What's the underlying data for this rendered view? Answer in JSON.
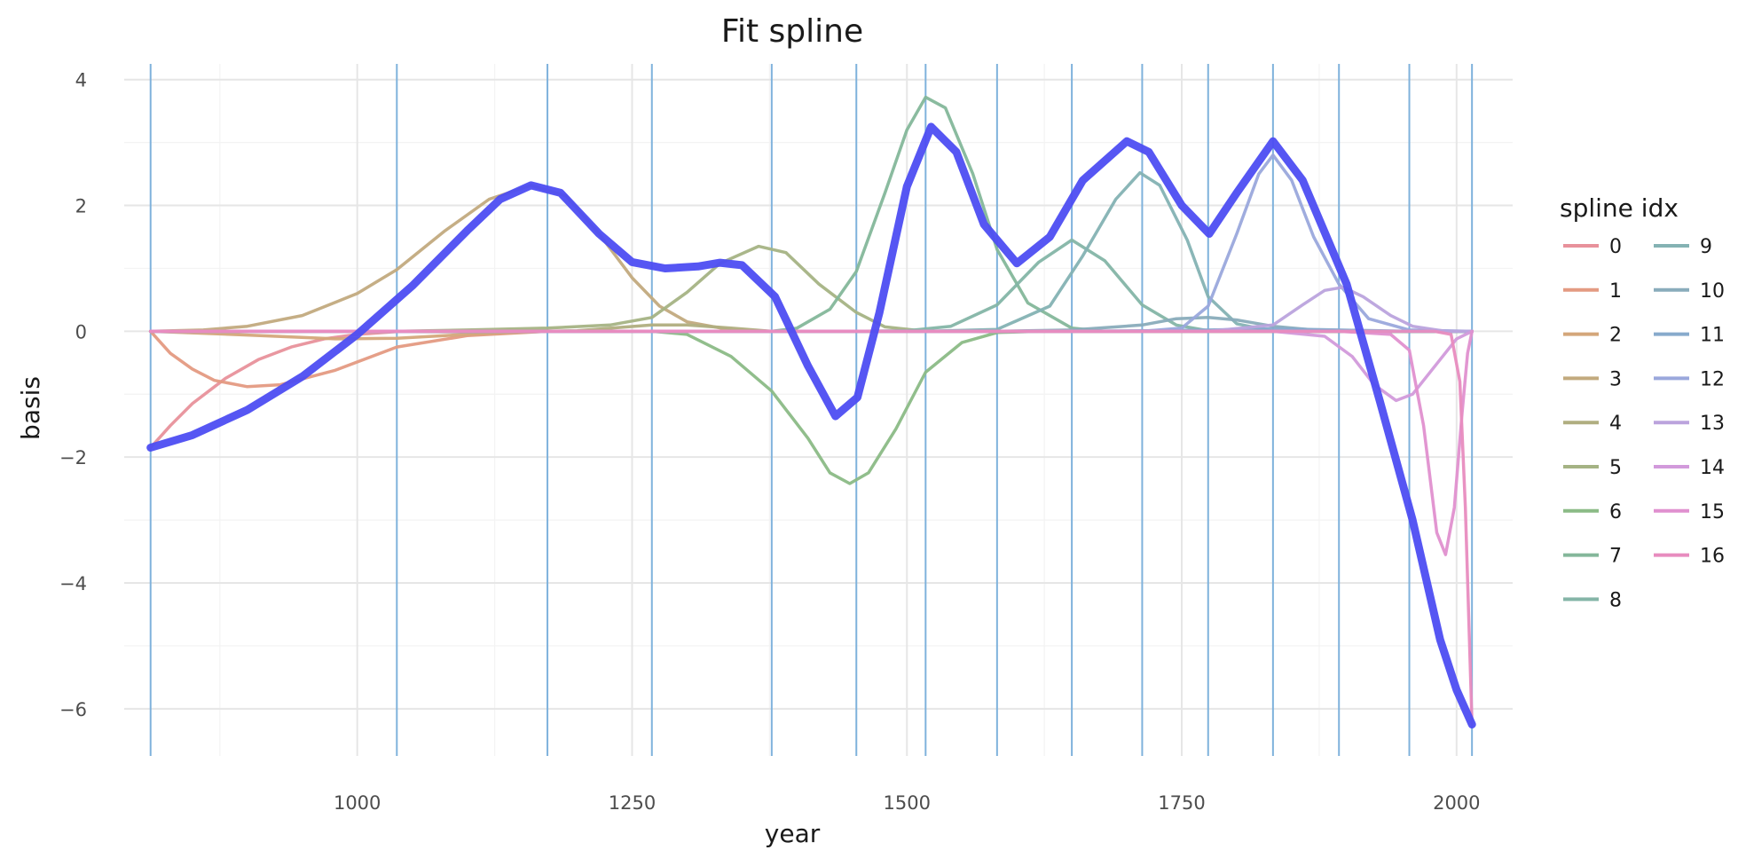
{
  "chart_data": {
    "type": "line",
    "title": "Fit spline",
    "xlabel": "year",
    "ylabel": "basis",
    "xlim": [
      788,
      2051
    ],
    "ylim": [
      -6.75,
      4.25
    ],
    "x_ticks": [
      1000,
      1250,
      1500,
      1750,
      2000
    ],
    "x_tick_labels": [
      "1000",
      "1250",
      "1500",
      "1750",
      "2000"
    ],
    "y_ticks": [
      4,
      2,
      0,
      -2,
      -4,
      -6
    ],
    "y_tick_labels": [
      "4",
      "2",
      "0",
      "−2",
      "−4",
      "−6"
    ],
    "grid": true,
    "legend": {
      "title": "spline idx",
      "placement": "right"
    },
    "knots": [
      812,
      1036,
      1173,
      1268,
      1377,
      1454,
      1517,
      1582,
      1650,
      1714,
      1774,
      1833,
      1893,
      1957,
      2014
    ],
    "knot_color": "#7fb2dc",
    "fit": {
      "color": "#4d4df2",
      "points": [
        [
          812,
          -1.85
        ],
        [
          850,
          -1.65
        ],
        [
          900,
          -1.25
        ],
        [
          950,
          -0.72
        ],
        [
          1000,
          -0.05
        ],
        [
          1050,
          0.72
        ],
        [
          1100,
          1.6
        ],
        [
          1130,
          2.1
        ],
        [
          1158,
          2.32
        ],
        [
          1185,
          2.2
        ],
        [
          1220,
          1.55
        ],
        [
          1250,
          1.1
        ],
        [
          1280,
          1.0
        ],
        [
          1310,
          1.03
        ],
        [
          1330,
          1.09
        ],
        [
          1350,
          1.05
        ],
        [
          1380,
          0.55
        ],
        [
          1410,
          -0.55
        ],
        [
          1435,
          -1.35
        ],
        [
          1455,
          -1.05
        ],
        [
          1475,
          0.3
        ],
        [
          1500,
          2.3
        ],
        [
          1522,
          3.25
        ],
        [
          1545,
          2.85
        ],
        [
          1570,
          1.7
        ],
        [
          1600,
          1.08
        ],
        [
          1630,
          1.5
        ],
        [
          1660,
          2.4
        ],
        [
          1700,
          3.02
        ],
        [
          1720,
          2.85
        ],
        [
          1750,
          2.0
        ],
        [
          1775,
          1.55
        ],
        [
          1800,
          2.2
        ],
        [
          1833,
          3.02
        ],
        [
          1860,
          2.4
        ],
        [
          1900,
          0.75
        ],
        [
          1930,
          -1.1
        ],
        [
          1960,
          -3.0
        ],
        [
          1985,
          -4.9
        ],
        [
          2000,
          -5.7
        ],
        [
          2014,
          -6.25
        ]
      ]
    },
    "series": [
      {
        "name": "0",
        "color": "#e8919b",
        "points": [
          [
            812,
            -1.85
          ],
          [
            830,
            -1.5
          ],
          [
            850,
            -1.15
          ],
          [
            880,
            -0.75
          ],
          [
            910,
            -0.45
          ],
          [
            940,
            -0.25
          ],
          [
            970,
            -0.12
          ],
          [
            1000,
            -0.05
          ],
          [
            1040,
            0
          ],
          [
            2014,
            0
          ]
        ]
      },
      {
        "name": "1",
        "color": "#e49a82",
        "points": [
          [
            812,
            0
          ],
          [
            830,
            -0.35
          ],
          [
            850,
            -0.6
          ],
          [
            870,
            -0.78
          ],
          [
            900,
            -0.88
          ],
          [
            930,
            -0.85
          ],
          [
            980,
            -0.62
          ],
          [
            1036,
            -0.25
          ],
          [
            1100,
            -0.07
          ],
          [
            1173,
            0
          ],
          [
            2014,
            0
          ]
        ]
      },
      {
        "name": "2",
        "color": "#d4a67a",
        "points": [
          [
            812,
            0
          ],
          [
            900,
            -0.06
          ],
          [
            980,
            -0.12
          ],
          [
            1036,
            -0.11
          ],
          [
            1100,
            -0.05
          ],
          [
            1173,
            0
          ],
          [
            2014,
            0
          ]
        ]
      },
      {
        "name": "3",
        "color": "#c2aa7e",
        "points": [
          [
            812,
            0
          ],
          [
            860,
            0.02
          ],
          [
            900,
            0.08
          ],
          [
            950,
            0.25
          ],
          [
            1000,
            0.6
          ],
          [
            1036,
            0.98
          ],
          [
            1080,
            1.6
          ],
          [
            1120,
            2.1
          ],
          [
            1158,
            2.32
          ],
          [
            1190,
            2.15
          ],
          [
            1220,
            1.55
          ],
          [
            1250,
            0.85
          ],
          [
            1275,
            0.4
          ],
          [
            1300,
            0.15
          ],
          [
            1340,
            0.02
          ],
          [
            1377,
            0
          ],
          [
            2014,
            0
          ]
        ]
      },
      {
        "name": "4",
        "color": "#b0ae80",
        "points": [
          [
            812,
            0
          ],
          [
            1000,
            0
          ],
          [
            1100,
            -0.01
          ],
          [
            1173,
            0
          ],
          [
            1200,
            0.01
          ],
          [
            1268,
            0.1
          ],
          [
            1300,
            0.1
          ],
          [
            1340,
            0.05
          ],
          [
            1377,
            0
          ],
          [
            2014,
            0
          ]
        ]
      },
      {
        "name": "5",
        "color": "#a5b384",
        "points": [
          [
            812,
            0
          ],
          [
            1036,
            0
          ],
          [
            1100,
            0.02
          ],
          [
            1173,
            0.05
          ],
          [
            1230,
            0.1
          ],
          [
            1268,
            0.22
          ],
          [
            1300,
            0.62
          ],
          [
            1330,
            1.08
          ],
          [
            1365,
            1.35
          ],
          [
            1390,
            1.25
          ],
          [
            1420,
            0.75
          ],
          [
            1454,
            0.3
          ],
          [
            1480,
            0.07
          ],
          [
            1517,
            0
          ],
          [
            2014,
            0
          ]
        ]
      },
      {
        "name": "6",
        "color": "#8bbb86",
        "points": [
          [
            812,
            0
          ],
          [
            1268,
            0
          ],
          [
            1300,
            -0.05
          ],
          [
            1340,
            -0.4
          ],
          [
            1377,
            -0.95
          ],
          [
            1410,
            -1.7
          ],
          [
            1430,
            -2.25
          ],
          [
            1448,
            -2.42
          ],
          [
            1465,
            -2.25
          ],
          [
            1490,
            -1.55
          ],
          [
            1517,
            -0.65
          ],
          [
            1550,
            -0.18
          ],
          [
            1582,
            -0.02
          ],
          [
            1620,
            0
          ],
          [
            2014,
            0
          ]
        ]
      },
      {
        "name": "7",
        "color": "#84b79a",
        "points": [
          [
            812,
            0
          ],
          [
            1377,
            0
          ],
          [
            1400,
            0.05
          ],
          [
            1430,
            0.35
          ],
          [
            1454,
            0.95
          ],
          [
            1480,
            2.2
          ],
          [
            1500,
            3.2
          ],
          [
            1517,
            3.72
          ],
          [
            1535,
            3.55
          ],
          [
            1560,
            2.5
          ],
          [
            1582,
            1.3
          ],
          [
            1610,
            0.45
          ],
          [
            1650,
            0.05
          ],
          [
            1680,
            0
          ],
          [
            2014,
            0
          ]
        ]
      },
      {
        "name": "8",
        "color": "#84b5a7",
        "points": [
          [
            812,
            0
          ],
          [
            1454,
            0
          ],
          [
            1500,
            0.01
          ],
          [
            1540,
            0.08
          ],
          [
            1582,
            0.42
          ],
          [
            1620,
            1.1
          ],
          [
            1650,
            1.45
          ],
          [
            1680,
            1.12
          ],
          [
            1714,
            0.42
          ],
          [
            1745,
            0.1
          ],
          [
            1774,
            0.01
          ],
          [
            1800,
            0
          ],
          [
            2014,
            0
          ]
        ]
      },
      {
        "name": "9",
        "color": "#84b2b3",
        "points": [
          [
            812,
            0
          ],
          [
            1517,
            0
          ],
          [
            1582,
            0.03
          ],
          [
            1630,
            0.4
          ],
          [
            1660,
            1.2
          ],
          [
            1690,
            2.1
          ],
          [
            1712,
            2.52
          ],
          [
            1730,
            2.32
          ],
          [
            1755,
            1.45
          ],
          [
            1774,
            0.55
          ],
          [
            1800,
            0.12
          ],
          [
            1833,
            0
          ],
          [
            2014,
            0
          ]
        ]
      },
      {
        "name": "10",
        "color": "#89acbb",
        "points": [
          [
            812,
            0
          ],
          [
            1582,
            0
          ],
          [
            1650,
            0.02
          ],
          [
            1714,
            0.1
          ],
          [
            1745,
            0.2
          ],
          [
            1774,
            0.22
          ],
          [
            1800,
            0.18
          ],
          [
            1833,
            0.08
          ],
          [
            1870,
            0.02
          ],
          [
            1893,
            0
          ],
          [
            2014,
            0
          ]
        ]
      },
      {
        "name": "11",
        "color": "#87aacc",
        "points": [
          [
            812,
            0
          ],
          [
            1650,
            0
          ],
          [
            1714,
            0.01
          ],
          [
            1774,
            0.02
          ],
          [
            1833,
            0.04
          ],
          [
            1893,
            0.02
          ],
          [
            1957,
            0
          ],
          [
            2014,
            0
          ]
        ]
      },
      {
        "name": "12",
        "color": "#9aa8dc",
        "points": [
          [
            812,
            0
          ],
          [
            1714,
            0
          ],
          [
            1750,
            0.05
          ],
          [
            1774,
            0.4
          ],
          [
            1800,
            1.55
          ],
          [
            1820,
            2.5
          ],
          [
            1833,
            2.8
          ],
          [
            1850,
            2.4
          ],
          [
            1870,
            1.5
          ],
          [
            1893,
            0.75
          ],
          [
            1920,
            0.2
          ],
          [
            1957,
            0.02
          ],
          [
            2014,
            0
          ]
        ]
      },
      {
        "name": "13",
        "color": "#bba3dd",
        "points": [
          [
            812,
            0
          ],
          [
            1774,
            0
          ],
          [
            1833,
            0.1
          ],
          [
            1860,
            0.42
          ],
          [
            1880,
            0.65
          ],
          [
            1897,
            0.7
          ],
          [
            1915,
            0.55
          ],
          [
            1940,
            0.25
          ],
          [
            1960,
            0.08
          ],
          [
            1990,
            0
          ],
          [
            2014,
            0
          ]
        ]
      },
      {
        "name": "14",
        "color": "#d29adb",
        "points": [
          [
            812,
            0
          ],
          [
            1833,
            0
          ],
          [
            1880,
            -0.08
          ],
          [
            1905,
            -0.4
          ],
          [
            1925,
            -0.85
          ],
          [
            1945,
            -1.1
          ],
          [
            1960,
            -1.0
          ],
          [
            1985,
            -0.45
          ],
          [
            2000,
            -0.12
          ],
          [
            2014,
            0
          ]
        ]
      },
      {
        "name": "15",
        "color": "#e090cf",
        "points": [
          [
            812,
            0
          ],
          [
            1893,
            0
          ],
          [
            1940,
            -0.05
          ],
          [
            1957,
            -0.3
          ],
          [
            1970,
            -1.5
          ],
          [
            1982,
            -3.2
          ],
          [
            1990,
            -3.55
          ],
          [
            1998,
            -2.8
          ],
          [
            2005,
            -1.3
          ],
          [
            2010,
            -0.35
          ],
          [
            2014,
            0
          ]
        ]
      },
      {
        "name": "16",
        "color": "#e88cbf",
        "points": [
          [
            812,
            0
          ],
          [
            1980,
            0
          ],
          [
            1995,
            -0.05
          ],
          [
            2003,
            -0.8
          ],
          [
            2008,
            -2.8
          ],
          [
            2014,
            -6.25
          ]
        ]
      }
    ]
  }
}
